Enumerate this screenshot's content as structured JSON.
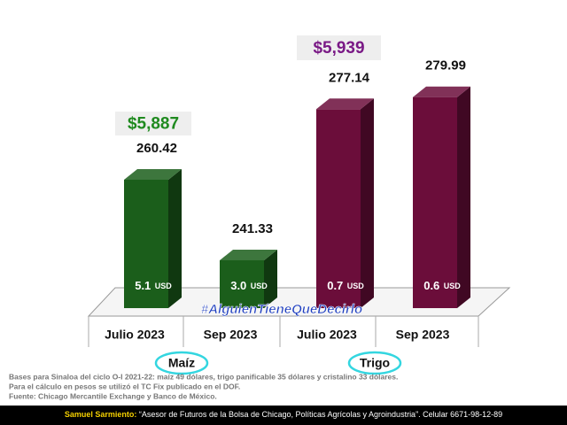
{
  "chart_data": {
    "type": "bar3d",
    "categories": [
      "Julio 2023",
      "Sep 2023",
      "Julio 2023",
      "Sep 2023"
    ],
    "values": [
      260.42,
      241.33,
      277.14,
      279.99
    ],
    "colors": [
      "#1b5e1b",
      "#1b5e1b",
      "#6b0d3a",
      "#6b0d3a"
    ],
    "ylim": [
      230,
      290
    ],
    "inner_labels": [
      "5.1",
      "3.0",
      "0.7",
      "0.6"
    ],
    "inner_unit": "USD",
    "groups": [
      {
        "label": "Maíz",
        "color": "#33d6e0"
      },
      {
        "label": "Trigo",
        "color": "#33d6e0"
      }
    ],
    "annotations": [
      {
        "text": "$5,887",
        "color": "#1f8a1f"
      },
      {
        "text": "$5,939",
        "color": "#7a1a86"
      }
    ],
    "hashtag": "#AlguienTieneQueDecirlo",
    "notes": [
      "Bases para Sinaloa del ciclo O-I 2021-22: maíz 49 dólares, trigo panificable 35 dólares y cristalino 33 dólares.",
      "Para el cálculo en pesos se utilizó el TC Fix publicado en el DOF.",
      "Fuente: Chicago Mercantile Exchange y Banco de México."
    ],
    "footer": {
      "name": "Samuel Sarmiento:",
      "text": "“Asesor de Futuros de la Bolsa de Chicago, Políticas Agrícolas y Agroindustria”. Celular 6671-98-12-89"
    }
  }
}
